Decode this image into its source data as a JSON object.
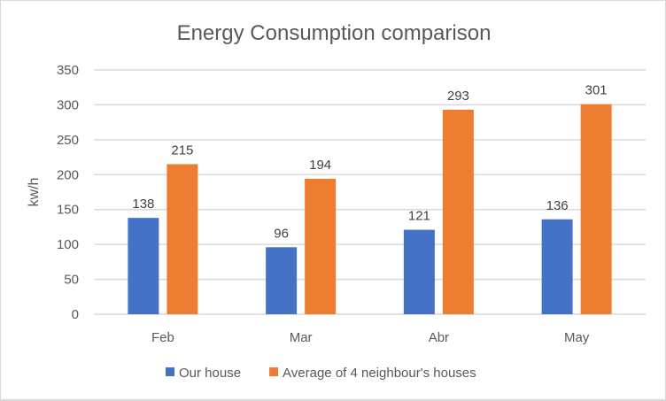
{
  "chart_data": {
    "type": "bar",
    "title": "Energy Consumption  comparison",
    "xlabel": "",
    "ylabel": "kw/h",
    "ylim": [
      0,
      350
    ],
    "yticks": [
      0,
      50,
      100,
      150,
      200,
      250,
      300,
      350
    ],
    "grid": true,
    "legend_position": "bottom",
    "categories": [
      "Feb",
      "Mar",
      "Abr",
      "May"
    ],
    "series": [
      {
        "name": "Our house",
        "color": "#4472c4",
        "values": [
          138,
          96,
          121,
          136
        ]
      },
      {
        "name": "Average of 4 neighbour's houses",
        "color": "#ed7d31",
        "values": [
          215,
          194,
          293,
          301
        ]
      }
    ]
  }
}
